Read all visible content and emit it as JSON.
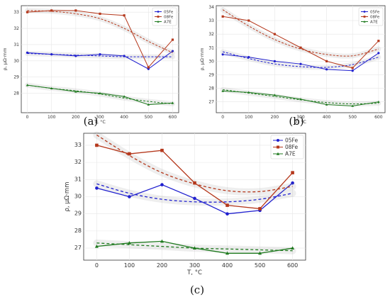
{
  "colors": {
    "05Fe": "#1f1fcf",
    "08Fe": "#b5381c",
    "A7E": "#1f7a1f",
    "fit_halo": "rgba(120,120,120,0.13)"
  },
  "chart_data": [
    {
      "panel": "(a)",
      "type": "line",
      "xlabel": "T, °C",
      "ylabel": "ρ, μΩ·mm",
      "x": [
        0,
        100,
        200,
        300,
        400,
        500,
        600
      ],
      "xticks": [
        0,
        100,
        200,
        300,
        400,
        500,
        600
      ],
      "yticks": [
        28,
        29,
        30,
        31,
        32,
        33
      ],
      "xlim": [
        -25,
        625
      ],
      "ylim": [
        26.8,
        33.4
      ],
      "grid": true,
      "legend_position": "top-right",
      "series": [
        {
          "name": "05Fe",
          "marker": "circle",
          "values": [
            30.5,
            30.4,
            30.3,
            30.4,
            30.3,
            29.5,
            30.6
          ],
          "fit": [
            30.45,
            30.4,
            30.35,
            30.3,
            30.25,
            30.25,
            30.25
          ]
        },
        {
          "name": "08Fe",
          "marker": "square",
          "values": [
            33.0,
            33.1,
            33.1,
            32.9,
            32.8,
            29.6,
            31.3
          ],
          "fit": [
            33.1,
            33.05,
            32.9,
            32.6,
            32.0,
            31.2,
            30.5
          ]
        },
        {
          "name": "A7E",
          "marker": "triangle",
          "values": [
            28.5,
            28.3,
            28.1,
            28.0,
            27.8,
            27.3,
            27.4
          ],
          "fit": [
            28.5,
            28.3,
            28.15,
            27.95,
            27.7,
            27.5,
            27.35
          ]
        }
      ]
    },
    {
      "panel": "(b)",
      "type": "line",
      "xlabel": "T, °C",
      "ylabel": "ρ, μΩ·mm",
      "x": [
        0,
        100,
        200,
        300,
        400,
        500,
        600
      ],
      "xticks": [
        0,
        100,
        200,
        300,
        400,
        500,
        600
      ],
      "yticks": [
        27,
        28,
        29,
        30,
        31,
        32,
        33,
        34
      ],
      "xlim": [
        -25,
        625
      ],
      "ylim": [
        26.2,
        34.1
      ],
      "grid": true,
      "legend_position": "top-right",
      "series": [
        {
          "name": "05Fe",
          "marker": "circle",
          "values": [
            30.5,
            30.3,
            30.0,
            29.8,
            29.4,
            29.3,
            30.6
          ],
          "fit": [
            30.7,
            30.2,
            29.8,
            29.6,
            29.55,
            29.75,
            30.3
          ]
        },
        {
          "name": "08Fe",
          "marker": "square",
          "values": [
            33.3,
            33.0,
            32.0,
            31.0,
            30.0,
            29.5,
            31.5
          ],
          "fit": [
            33.8,
            32.6,
            31.6,
            30.9,
            30.5,
            30.4,
            30.9
          ]
        },
        {
          "name": "A7E",
          "marker": "triangle",
          "values": [
            27.8,
            27.7,
            27.5,
            27.2,
            26.8,
            26.7,
            27.0
          ],
          "fit": [
            27.9,
            27.65,
            27.4,
            27.15,
            26.95,
            26.85,
            26.9
          ]
        }
      ]
    },
    {
      "panel": "(c)",
      "type": "line",
      "xlabel": "T, °C",
      "ylabel": "ρ, μΩ·mm",
      "x": [
        0,
        100,
        200,
        300,
        400,
        500,
        600
      ],
      "xticks": [
        0,
        100,
        200,
        300,
        400,
        500,
        600
      ],
      "yticks": [
        27,
        28,
        29,
        30,
        31,
        32,
        33
      ],
      "xlim": [
        -40,
        640
      ],
      "ylim": [
        26.3,
        33.7
      ],
      "grid": true,
      "legend_position": "top-right",
      "series": [
        {
          "name": "05Fe",
          "marker": "circle",
          "values": [
            30.5,
            30.0,
            30.7,
            29.9,
            29.0,
            29.2,
            30.8
          ],
          "fit": [
            30.75,
            30.2,
            29.85,
            29.7,
            29.7,
            29.85,
            30.2
          ]
        },
        {
          "name": "08Fe",
          "marker": "square",
          "values": [
            33.0,
            32.5,
            32.7,
            30.8,
            29.5,
            29.3,
            31.4
          ],
          "fit": [
            33.6,
            32.4,
            31.4,
            30.75,
            30.35,
            30.3,
            30.6
          ]
        },
        {
          "name": "A7E",
          "marker": "triangle",
          "values": [
            27.1,
            27.3,
            27.4,
            27.0,
            26.7,
            26.7,
            27.0
          ],
          "fit": [
            27.3,
            27.2,
            27.1,
            27.0,
            26.95,
            26.9,
            26.85
          ]
        }
      ]
    }
  ]
}
